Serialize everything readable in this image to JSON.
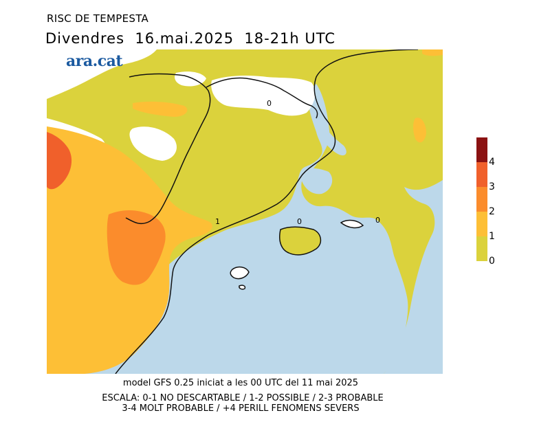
{
  "header": {
    "title": "RISC DE TEMPESTA",
    "subtitle": "Divendres  16.mai.2025  18-21h UTC"
  },
  "logo": {
    "text": "ara.cat",
    "color": "#1b5aa0"
  },
  "map": {
    "sea_color": "#bcd8ea",
    "land_no_data_color": "#ffffff",
    "contour_labels": [
      "0",
      "1",
      "0",
      "0"
    ]
  },
  "legend": {
    "levels": [
      {
        "label": "0",
        "color": "#dbd23c"
      },
      {
        "label": "1",
        "color": "#fdbf36"
      },
      {
        "label": "2",
        "color": "#fb8c2c"
      },
      {
        "label": "3",
        "color": "#f0602b"
      },
      {
        "label": "4",
        "color": "#8b1212"
      }
    ]
  },
  "footer": {
    "model": "model GFS 0.25 iniciat a les 00 UTC del 11 mai 2025",
    "scale_line1": "ESCALA: 0-1 NO DESCARTABLE / 1-2 POSSIBLE / 2-3 PROBABLE",
    "scale_line2": "3-4 MOLT PROBABLE / +4 PERILL FENOMENS SEVERS"
  }
}
